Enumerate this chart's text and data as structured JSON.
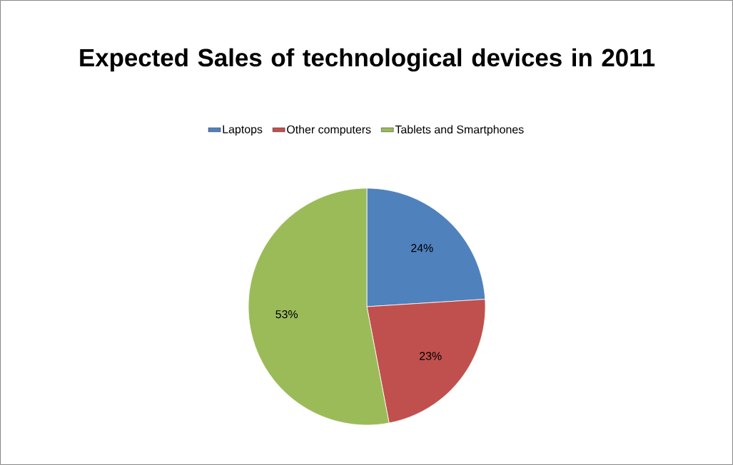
{
  "chart_data": {
    "type": "pie",
    "title": "Expected Sales of technological devices in 2011",
    "categories": [
      "Laptops",
      "Other computers",
      "Tablets and Smartphones"
    ],
    "values": [
      24,
      23,
      53
    ],
    "value_labels": [
      "24%",
      "23%",
      "53%"
    ],
    "colors": [
      "#4f81bd",
      "#c0504d",
      "#9bbb59"
    ],
    "legend": "top"
  }
}
